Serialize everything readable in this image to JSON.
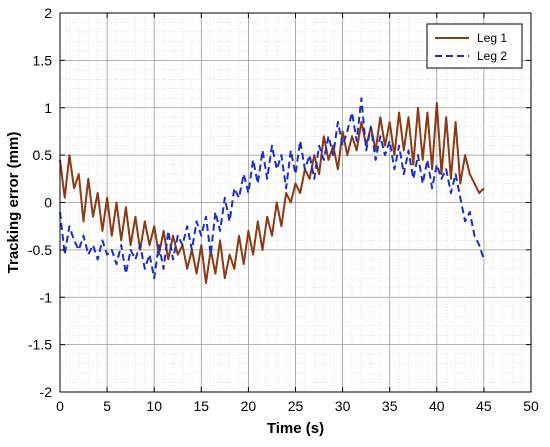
{
  "chart_data": {
    "type": "line",
    "xlabel": "Time (s)",
    "ylabel": "Tracking error (mm)",
    "xlim": [
      0,
      50
    ],
    "ylim": [
      -2,
      2
    ],
    "xticks": [
      0,
      5,
      10,
      15,
      20,
      25,
      30,
      35,
      40,
      45,
      50
    ],
    "yticks": [
      2,
      1.5,
      1,
      0.5,
      0,
      -0.5,
      -1,
      -1.5,
      -2
    ],
    "grid": true,
    "minor_grid": true,
    "legend_position": "top-right",
    "series": [
      {
        "name": "Leg 1",
        "color": "#8B3A14",
        "style": "solid",
        "x": [
          0,
          0.5,
          1,
          1.5,
          2,
          2.5,
          3,
          3.5,
          4,
          4.5,
          5,
          5.5,
          6,
          6.5,
          7,
          7.5,
          8,
          8.5,
          9,
          9.5,
          10,
          10.5,
          11,
          11.5,
          12,
          12.5,
          13,
          13.5,
          14,
          14.5,
          15,
          15.5,
          16,
          16.5,
          17,
          17.5,
          18,
          18.5,
          19,
          19.5,
          20,
          20.5,
          21,
          21.5,
          22,
          22.5,
          23,
          23.5,
          24,
          24.5,
          25,
          25.5,
          26,
          26.5,
          27,
          27.5,
          28,
          28.5,
          29,
          29.5,
          30,
          30.5,
          31,
          31.5,
          32,
          32.5,
          33,
          33.5,
          34,
          34.5,
          35,
          35.5,
          36,
          36.5,
          37,
          37.5,
          38,
          38.5,
          39,
          39.5,
          40,
          40.5,
          41,
          41.5,
          42,
          42.5,
          43,
          43.5,
          44,
          44.5,
          45
        ],
        "y": [
          0.45,
          0.05,
          0.5,
          0.15,
          0.3,
          -0.2,
          0.25,
          -0.15,
          0.1,
          -0.3,
          0.05,
          -0.35,
          0.0,
          -0.4,
          -0.05,
          -0.45,
          -0.15,
          -0.5,
          -0.2,
          -0.45,
          -0.25,
          -0.55,
          -0.3,
          -0.6,
          -0.35,
          -0.55,
          -0.45,
          -0.7,
          -0.5,
          -0.75,
          -0.45,
          -0.85,
          -0.5,
          -0.75,
          -0.4,
          -0.8,
          -0.55,
          -0.7,
          -0.35,
          -0.65,
          -0.3,
          -0.55,
          -0.2,
          -0.5,
          -0.15,
          -0.35,
          0.0,
          -0.25,
          0.1,
          0.0,
          0.2,
          0.1,
          0.35,
          0.25,
          0.5,
          0.3,
          0.7,
          0.45,
          0.6,
          0.35,
          0.75,
          0.5,
          0.7,
          0.55,
          0.85,
          0.6,
          0.8,
          0.55,
          0.9,
          0.6,
          0.85,
          0.5,
          0.95,
          0.55,
          0.9,
          0.4,
          1.0,
          0.45,
          0.95,
          0.35,
          1.05,
          0.3,
          0.9,
          0.25,
          0.85,
          0.2,
          0.5,
          0.3,
          0.2,
          0.1,
          0.15
        ]
      },
      {
        "name": "Leg 2",
        "color": "#1C2EC8",
        "style": "dashed",
        "x": [
          0,
          0.5,
          1,
          1.5,
          2,
          2.5,
          3,
          3.5,
          4,
          4.5,
          5,
          5.5,
          6,
          6.5,
          7,
          7.5,
          8,
          8.5,
          9,
          9.5,
          10,
          10.5,
          11,
          11.5,
          12,
          12.5,
          13,
          13.5,
          14,
          14.5,
          15,
          15.5,
          16,
          16.5,
          17,
          17.5,
          18,
          18.5,
          19,
          19.5,
          20,
          20.5,
          21,
          21.5,
          22,
          22.5,
          23,
          23.5,
          24,
          24.5,
          25,
          25.5,
          26,
          26.5,
          27,
          27.5,
          28,
          28.5,
          29,
          29.5,
          30,
          30.5,
          31,
          31.5,
          32,
          32.5,
          33,
          33.5,
          34,
          34.5,
          35,
          35.5,
          36,
          36.5,
          37,
          37.5,
          38,
          38.5,
          39,
          39.5,
          40,
          40.5,
          41,
          41.5,
          42,
          42.5,
          43,
          43.5,
          44,
          44.5,
          45
        ],
        "y": [
          -0.1,
          -0.55,
          -0.25,
          -0.4,
          -0.5,
          -0.35,
          -0.55,
          -0.45,
          -0.6,
          -0.4,
          -0.55,
          -0.5,
          -0.65,
          -0.45,
          -0.75,
          -0.5,
          -0.6,
          -0.45,
          -0.7,
          -0.55,
          -0.8,
          -0.45,
          -0.7,
          -0.3,
          -0.6,
          -0.35,
          -0.45,
          -0.25,
          -0.5,
          -0.2,
          -0.35,
          -0.15,
          -0.55,
          -0.1,
          -0.3,
          0.05,
          -0.2,
          0.15,
          0.05,
          0.3,
          0.1,
          0.45,
          0.2,
          0.55,
          0.25,
          0.6,
          0.35,
          0.5,
          0.15,
          0.55,
          0.3,
          0.65,
          0.35,
          0.5,
          0.25,
          0.6,
          0.45,
          0.7,
          0.5,
          0.85,
          0.6,
          0.75,
          0.95,
          0.65,
          1.1,
          0.55,
          0.8,
          0.45,
          0.7,
          0.5,
          0.65,
          0.35,
          0.6,
          0.3,
          0.55,
          0.25,
          0.5,
          0.2,
          0.45,
          0.15,
          0.4,
          0.25,
          0.35,
          0.1,
          0.3,
          0.05,
          -0.2,
          -0.1,
          -0.35,
          -0.45,
          -0.6
        ]
      }
    ]
  }
}
